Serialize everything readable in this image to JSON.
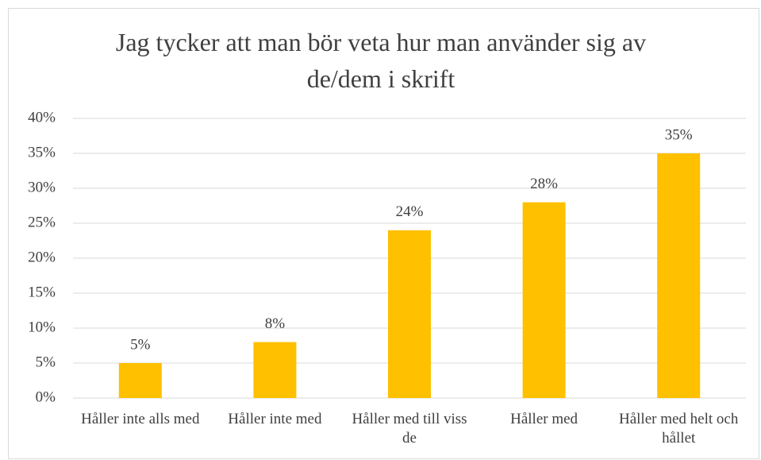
{
  "chart_data": {
    "type": "bar",
    "title": "Jag tycker att man bör veta hur man använder sig av de/dem i skrift",
    "categories": [
      "Håller inte alls med",
      "Håller inte med",
      "Håller med till viss de",
      "Håller med",
      "Håller med helt och hållet"
    ],
    "values": [
      5,
      8,
      24,
      28,
      35
    ],
    "value_labels": [
      "5%",
      "8%",
      "24%",
      "28%",
      "35%"
    ],
    "color": "#ffc000",
    "ylim": [
      0,
      40
    ],
    "yticks": [
      {
        "value": 0,
        "label": "0%"
      },
      {
        "value": 5,
        "label": "5%"
      },
      {
        "value": 10,
        "label": "10%"
      },
      {
        "value": 15,
        "label": "15%"
      },
      {
        "value": 20,
        "label": "20%"
      },
      {
        "value": 25,
        "label": "25%"
      },
      {
        "value": 30,
        "label": "30%"
      },
      {
        "value": 35,
        "label": "35%"
      },
      {
        "value": 40,
        "label": "40%"
      }
    ],
    "grid": true
  }
}
